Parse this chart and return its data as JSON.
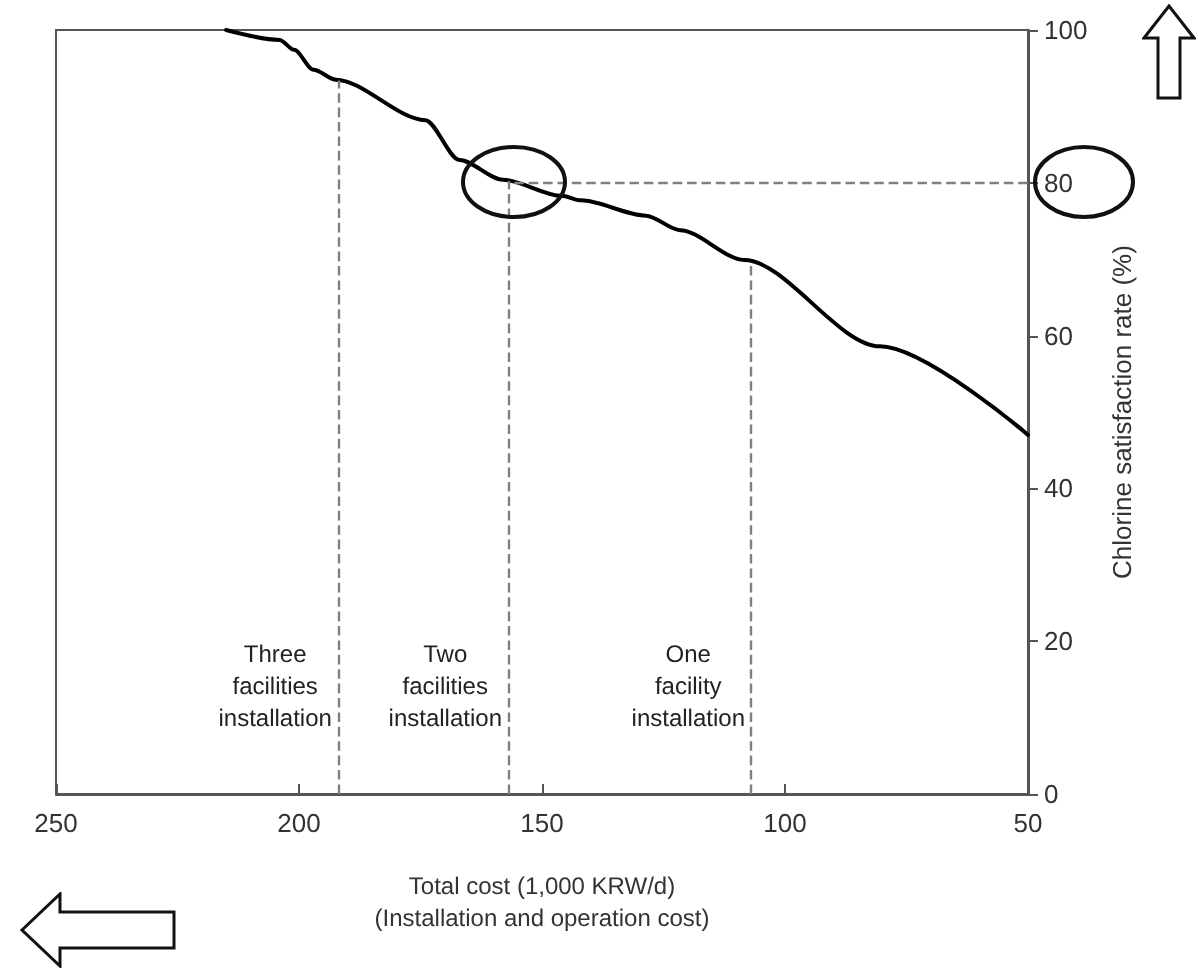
{
  "chart_data": {
    "type": "line",
    "xlabel": "Total cost (1,000 KRW/d)\n(Installation and operation cost)",
    "ylabel": "Chlorine satisfaction rate (%)",
    "x": [
      215,
      204,
      201,
      197,
      192.4,
      174,
      167,
      158,
      146,
      142,
      128.6,
      121.6,
      108.4,
      80.5,
      50
    ],
    "series": [
      {
        "color": "#000000",
        "values": [
          100,
          98.7,
          97.4,
          94.8,
          93.5,
          88.2,
          83,
          80.4,
          78.3,
          77.7,
          75.7,
          73.8,
          69.9,
          58.6,
          47
        ]
      }
    ],
    "xlim": [
      250,
      50
    ],
    "xticks": [
      250,
      200,
      150,
      100,
      50
    ],
    "ylim": [
      0,
      100
    ],
    "yticks": [
      0,
      20,
      40,
      60,
      80,
      100
    ],
    "ref_lines": [
      {
        "axis": "x",
        "value": 192,
        "color": "#808080",
        "line_style": "dashed"
      },
      {
        "axis": "x",
        "value": 157,
        "color": "#808080",
        "line_style": "dashed"
      },
      {
        "axis": "x",
        "value": 107,
        "color": "#808080",
        "line_style": "dashed"
      },
      {
        "axis": "y",
        "value": 80,
        "color": "#808080",
        "line_style": "dashed"
      }
    ],
    "annotations": [
      "Three facilities installation",
      "Two facilities installation",
      "One facility installation"
    ],
    "grid": false,
    "marker": "none",
    "line_style": "solid"
  }
}
